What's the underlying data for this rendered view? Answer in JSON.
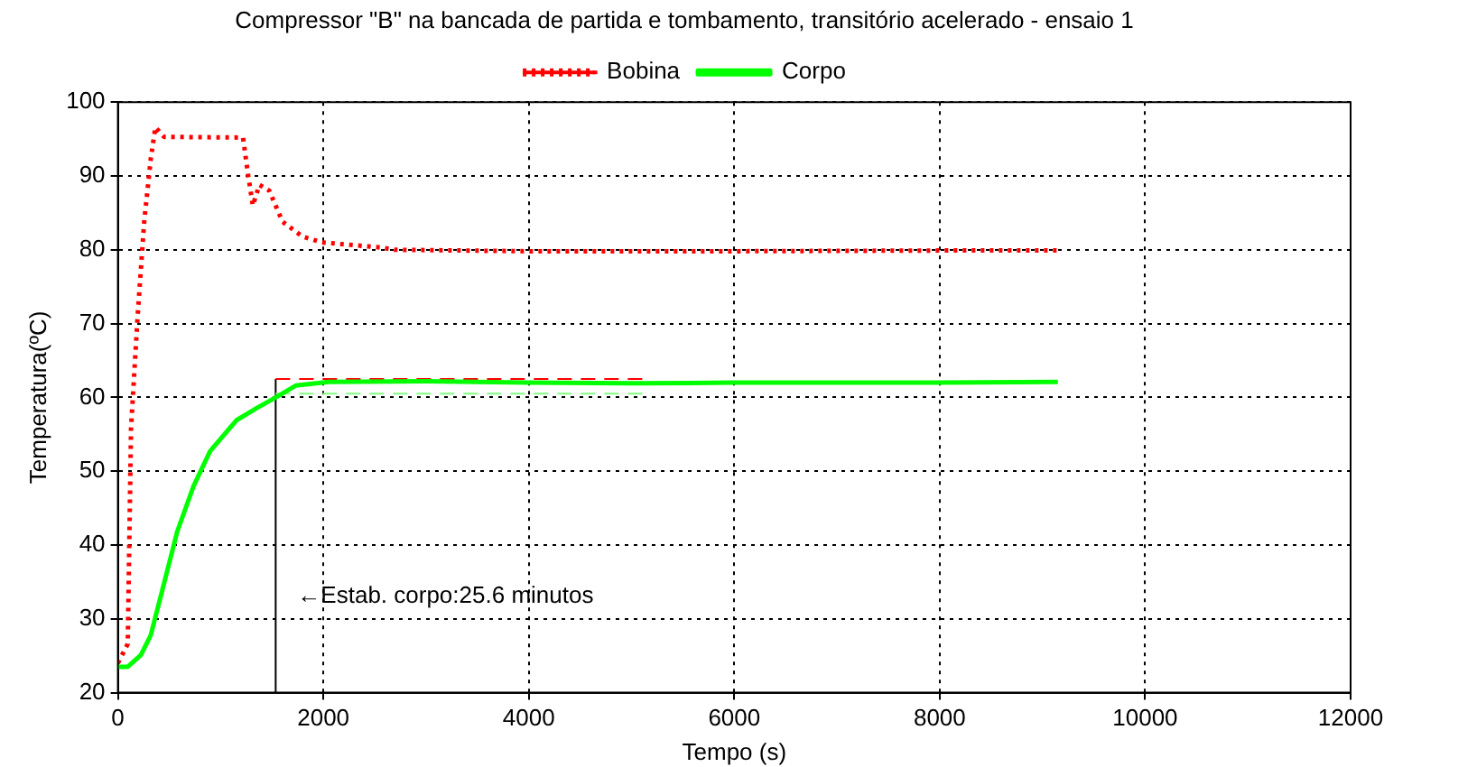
{
  "chart_data": {
    "type": "line",
    "title": "Compressor \"B\" na bancada de partida e tombamento, transitório acelerado - ensaio 1",
    "xlabel": "Tempo (s)",
    "ylabel": "Temperatura(ºC)",
    "xlim": [
      0,
      12000
    ],
    "xticks": [
      0,
      2000,
      4000,
      6000,
      8000,
      10000,
      12000
    ],
    "ylim": [
      20,
      100
    ],
    "yticks": [
      20,
      30,
      40,
      50,
      60,
      70,
      80,
      90,
      100
    ],
    "grid": true,
    "legend": "top",
    "marker": "none",
    "series": [
      {
        "name": "Bobina",
        "color": "#ff0000",
        "line_style": "dotted",
        "x": [
          0,
          96,
          128,
          192,
          256,
          320,
          365,
          449,
          1218,
          1269,
          1314,
          1378,
          1474,
          1603,
          1795,
          1987,
          2564,
          2692,
          4000,
          6000,
          8000,
          9150
        ],
        "values": [
          24,
          26.6,
          55.8,
          71,
          83.8,
          92.3,
          96.6,
          95.3,
          95.2,
          90,
          86,
          88.8,
          88,
          83.8,
          81.8,
          81,
          80.3,
          80,
          79.8,
          79.8,
          79.9,
          79.9
        ]
      },
      {
        "name": "Corpo",
        "color": "#00ff00",
        "line_style": "solid",
        "x": [
          0,
          96,
          224,
          320,
          449,
          577,
          737,
          897,
          1154,
          1346,
          1538,
          1731,
          2051,
          3000,
          4000,
          5000,
          6000,
          7000,
          8000,
          9150
        ],
        "values": [
          23.5,
          23.5,
          25.1,
          27.8,
          34.8,
          41.8,
          48,
          52.7,
          56.9,
          58.5,
          60,
          61.6,
          62.1,
          62.2,
          62,
          61.9,
          62,
          62,
          62,
          62.1
        ]
      },
      {
        "color": "#ff0000",
        "line_style": "dashed",
        "x": [
          1536,
          5130
        ],
        "values": [
          62.5,
          62.5
        ]
      },
      {
        "color": "#80ff80",
        "line_style": "dashed",
        "x": [
          1536,
          5130
        ],
        "values": [
          60.5,
          60.5
        ]
      },
      {
        "color": "#000000",
        "line_style": "solid",
        "x": [
          1536,
          1536
        ],
        "values": [
          20,
          62.5
        ]
      }
    ],
    "annotations": [
      {
        "text": "←Estab. corpo:25.6 minutos",
        "x": 1536,
        "y": 33
      }
    ]
  }
}
